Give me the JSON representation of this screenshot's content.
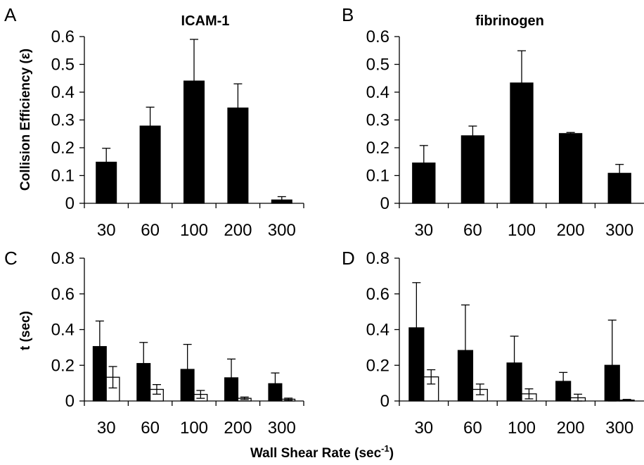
{
  "shared": {
    "xlabel": "Wall Shear Rate (sec",
    "xlabel_sup": "-1",
    "xlabel_close": ")",
    "categories": [
      "30",
      "60",
      "100",
      "200",
      "300"
    ]
  },
  "chart_data": [
    {
      "panel": "A",
      "type": "bar",
      "title": "ICAM-1",
      "ylabel": "Collision Efficiency (ε)",
      "ylim": [
        0,
        0.6
      ],
      "yticks": [
        "0",
        "0.1",
        "0.2",
        "0.3",
        "0.4",
        "0.5",
        "0.6"
      ],
      "categories": [
        "30",
        "60",
        "100",
        "200",
        "300"
      ],
      "series": [
        {
          "color": "#000000",
          "values": [
            0.148,
            0.278,
            0.44,
            0.343,
            0.012
          ],
          "errors": [
            0.05,
            0.068,
            0.15,
            0.087,
            0.012
          ]
        }
      ]
    },
    {
      "panel": "B",
      "type": "bar",
      "title": "fibrinogen",
      "ylabel": "",
      "ylim": [
        0,
        0.6
      ],
      "yticks": [
        "0",
        "0.1",
        "0.2",
        "0.3",
        "0.4",
        "0.5",
        "0.6"
      ],
      "categories": [
        "30",
        "60",
        "100",
        "200",
        "300"
      ],
      "series": [
        {
          "color": "#000000",
          "values": [
            0.145,
            0.243,
            0.433,
            0.251,
            0.108
          ],
          "errors": [
            0.063,
            0.035,
            0.116,
            0.004,
            0.032
          ]
        }
      ]
    },
    {
      "panel": "C",
      "type": "bar",
      "title": "",
      "ylabel": "t (sec)",
      "ylim": [
        0,
        0.8
      ],
      "yticks": [
        "0",
        "0.2",
        "0.4",
        "0.6",
        "0.8"
      ],
      "categories": [
        "30",
        "60",
        "100",
        "200",
        "300"
      ],
      "series": [
        {
          "color": "#000000",
          "values": [
            0.305,
            0.21,
            0.177,
            0.13,
            0.097
          ],
          "errors": [
            0.143,
            0.118,
            0.14,
            0.105,
            0.06
          ]
        },
        {
          "color": "#ffffff",
          "values": [
            0.133,
            0.065,
            0.037,
            0.015,
            0.01
          ],
          "errors": [
            0.06,
            0.027,
            0.022,
            0.007,
            0.006
          ]
        }
      ]
    },
    {
      "panel": "D",
      "type": "bar",
      "title": "",
      "ylabel": "",
      "ylim": [
        0,
        0.8
      ],
      "yticks": [
        "0",
        "0.2",
        "0.4",
        "0.6",
        "0.8"
      ],
      "categories": [
        "30",
        "60",
        "100",
        "200",
        "300"
      ],
      "series": [
        {
          "color": "#000000",
          "values": [
            0.41,
            0.283,
            0.213,
            0.11,
            0.2
          ],
          "errors": [
            0.253,
            0.255,
            0.15,
            0.05,
            0.253
          ]
        },
        {
          "color": "#ffffff",
          "values": [
            0.135,
            0.065,
            0.04,
            0.018,
            0.005
          ],
          "errors": [
            0.04,
            0.03,
            0.028,
            0.02,
            0.004
          ]
        }
      ]
    }
  ]
}
